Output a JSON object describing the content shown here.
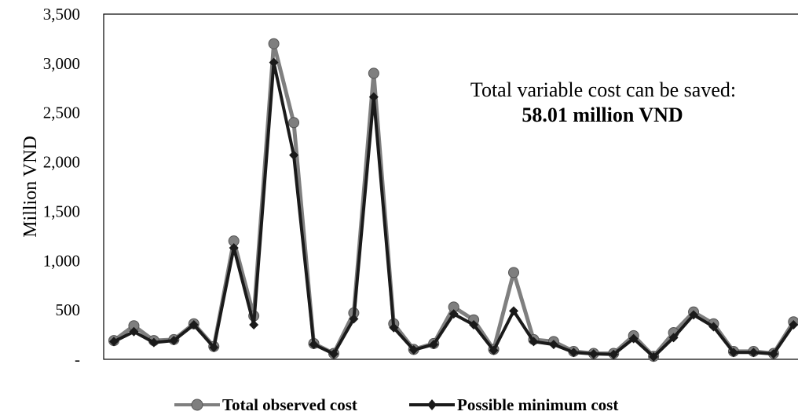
{
  "chart_data": {
    "type": "line",
    "title": "",
    "xlabel": "",
    "ylabel": "Million VND",
    "ylim": [
      0,
      3500
    ],
    "y_ticks": [
      "-",
      "500",
      "1,000",
      "1,500",
      "2,000",
      "2,500",
      "3,000",
      "3,500"
    ],
    "y_tick_values": [
      0,
      500,
      1000,
      1500,
      2000,
      2500,
      3000,
      3500
    ],
    "grid": false,
    "legend_position": "bottom",
    "annotation": {
      "line1": "Total variable cost can be saved:",
      "line2": "58.01 million VND"
    },
    "series": [
      {
        "name": "Total observed cost",
        "color": "#7f7f7f",
        "marker": "circle",
        "values": [
          190,
          340,
          190,
          200,
          360,
          130,
          1200,
          440,
          3200,
          2400,
          160,
          60,
          470,
          2900,
          360,
          100,
          160,
          530,
          400,
          100,
          880,
          200,
          180,
          80,
          60,
          60,
          240,
          30,
          270,
          480,
          360,
          80,
          80,
          60,
          380
        ]
      },
      {
        "name": "Possible minimum cost",
        "color": "#1a1a1a",
        "marker": "diamond",
        "values": [
          180,
          280,
          170,
          190,
          350,
          120,
          1130,
          350,
          3010,
          2070,
          150,
          55,
          410,
          2660,
          320,
          95,
          150,
          460,
          350,
          90,
          490,
          180,
          150,
          70,
          55,
          50,
          210,
          25,
          220,
          450,
          330,
          70,
          70,
          55,
          350
        ]
      }
    ]
  }
}
